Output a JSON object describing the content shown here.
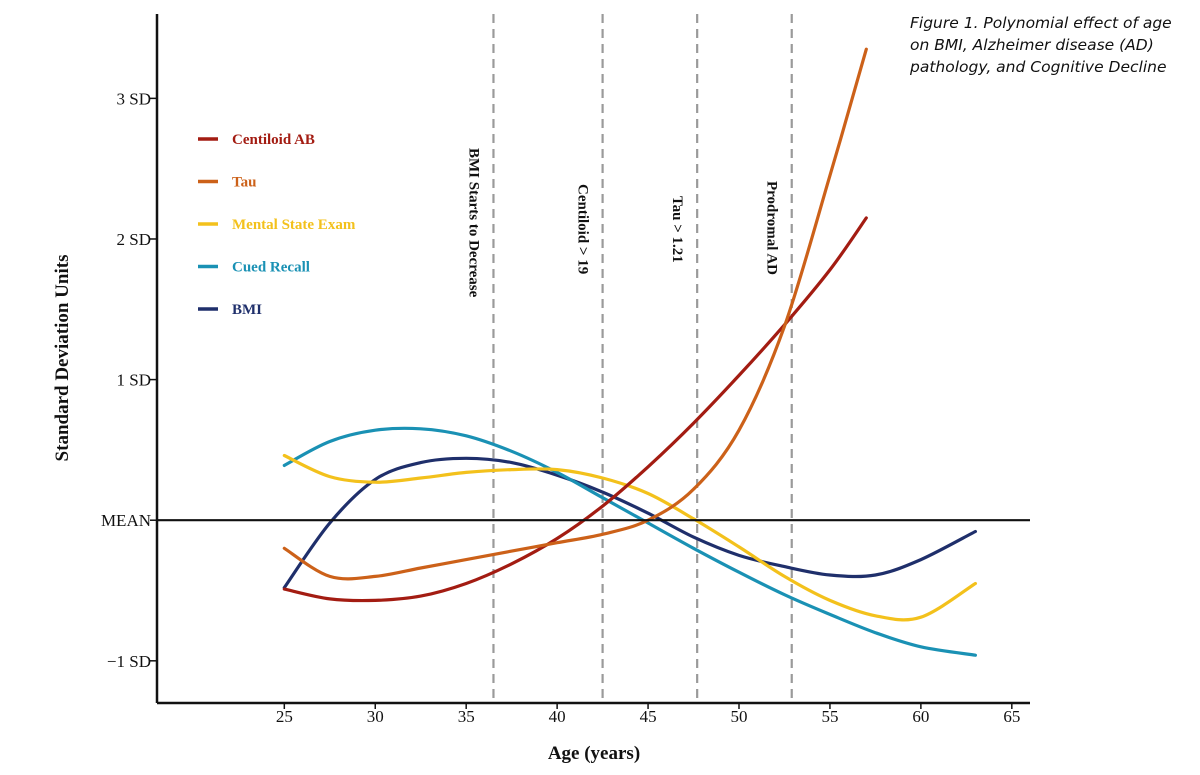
{
  "caption": "Figure 1. Polynomial effect of age on BMI, Alzheimer disease (AD) pathology, and Cognitive Decline",
  "chart_data": {
    "type": "line",
    "title": "Figure 1. Polynomial effect of age on BMI, Alzheimer disease (AD) pathology, and Cognitive Decline",
    "xlabel": "Age (years)",
    "ylabel": "Standard Deviation Units",
    "xlim": [
      18,
      66
    ],
    "ylim": [
      -1.3,
      3.6
    ],
    "x_ticks": [
      25,
      30,
      35,
      40,
      45,
      50,
      55,
      60,
      65
    ],
    "y_ticks": [
      {
        "value": -1,
        "label": "−1 SD"
      },
      {
        "value": 0,
        "label": "MEAN"
      },
      {
        "value": 1,
        "label": "1 SD"
      },
      {
        "value": 2,
        "label": "2 SD"
      },
      {
        "value": 3,
        "label": "3 SD"
      }
    ],
    "reference_line": {
      "y": 0,
      "label": "MEAN"
    },
    "vertical_lines": [
      {
        "x": 36.5,
        "label": "BMI Starts to Decrease"
      },
      {
        "x": 42.5,
        "label": "Centiloid > 19"
      },
      {
        "x": 47.7,
        "label": "Tau > 1.21"
      },
      {
        "x": 52.9,
        "label": "Prodromal AD"
      }
    ],
    "legend_position": "top-left",
    "grid": false,
    "series": [
      {
        "name": "Centiloid AB",
        "color": "#a31c12",
        "x": [
          25,
          27.5,
          30,
          32.5,
          35,
          37.5,
          40,
          42.5,
          45,
          47.5,
          50,
          52.5,
          55,
          57
        ],
        "y": [
          -0.49,
          -0.56,
          -0.57,
          -0.54,
          -0.45,
          -0.31,
          -0.13,
          0.1,
          0.38,
          0.69,
          1.03,
          1.39,
          1.78,
          2.15
        ]
      },
      {
        "name": "Tau",
        "color": "#cc6119",
        "x": [
          25,
          27.5,
          30,
          32.5,
          35,
          37.5,
          40,
          42.5,
          45,
          47.5,
          50,
          52.5,
          55,
          57
        ],
        "y": [
          -0.2,
          -0.4,
          -0.4,
          -0.34,
          -0.28,
          -0.22,
          -0.16,
          -0.1,
          0.0,
          0.22,
          0.64,
          1.38,
          2.45,
          3.35
        ]
      },
      {
        "name": "Mental State Exam",
        "color": "#f3c11c",
        "x": [
          25,
          27.5,
          30,
          32.5,
          35,
          37.5,
          40,
          42.5,
          45,
          47.5,
          50,
          52.5,
          55,
          57.5,
          60,
          63
        ],
        "y": [
          0.46,
          0.31,
          0.27,
          0.3,
          0.34,
          0.36,
          0.36,
          0.3,
          0.19,
          0.01,
          -0.19,
          -0.4,
          -0.57,
          -0.68,
          -0.69,
          -0.45
        ]
      },
      {
        "name": "Cued Recall",
        "color": "#1a91b4",
        "x": [
          25,
          27.5,
          30,
          32.5,
          35,
          37.5,
          40,
          42.5,
          45,
          47.5,
          50,
          52.5,
          55,
          57.5,
          60,
          63
        ],
        "y": [
          0.39,
          0.56,
          0.64,
          0.65,
          0.6,
          0.49,
          0.34,
          0.16,
          -0.02,
          -0.2,
          -0.37,
          -0.53,
          -0.67,
          -0.8,
          -0.9,
          -0.96
        ]
      },
      {
        "name": "BMI",
        "color": "#1f2f6b",
        "x": [
          25,
          27.5,
          30,
          32.5,
          35,
          37.5,
          40,
          42.5,
          45,
          47.5,
          50,
          52.5,
          55,
          57.5,
          60,
          63
        ],
        "y": [
          -0.48,
          -0.02,
          0.29,
          0.41,
          0.44,
          0.41,
          0.32,
          0.2,
          0.05,
          -0.12,
          -0.25,
          -0.33,
          -0.39,
          -0.39,
          -0.28,
          -0.08
        ]
      }
    ]
  }
}
